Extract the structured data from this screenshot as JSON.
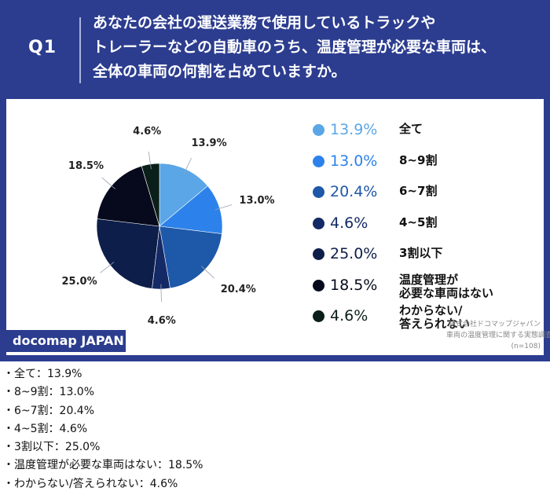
{
  "header": {
    "q_label": "Q1",
    "question_lines": [
      "あなたの会社の運送業務で使用しているトラックや",
      "トレーラーなどの自動車のうち、温度管理が必要な車両は、",
      "全体の車両の何割を占めていますか。"
    ]
  },
  "chart_data": {
    "type": "pie",
    "title": "",
    "categories": [
      "全て",
      "8~9割",
      "6~7割",
      "4~5割",
      "3割以下",
      "温度管理が必要な車両はない",
      "わからない/答えられない"
    ],
    "legend_labels": [
      "全て",
      "8~9割",
      "6~7割",
      "4~5割",
      "3割以下",
      "温度管理が\n必要な車両はない",
      "わからない/\n答えられない"
    ],
    "values": [
      13.9,
      13.0,
      20.4,
      4.6,
      25.0,
      18.5,
      4.6
    ],
    "value_labels": [
      "13.9%",
      "13.0%",
      "20.4%",
      "4.6%",
      "25.0%",
      "18.5%",
      "4.6%"
    ],
    "colors": [
      "#5aa6e6",
      "#2c82ea",
      "#1e58a8",
      "#142a66",
      "#0e1e4a",
      "#060a1c",
      "#0b1f1a"
    ],
    "legend_value_colors": [
      "#5aa6e6",
      "#2c82ea",
      "#1e58a8",
      "#142a66",
      "#0e1e4a",
      "#060a1c",
      "#0b1f1a"
    ],
    "legend_placement": "right",
    "start_angle_deg": 0,
    "direction": "clockwise"
  },
  "source": {
    "lines": [
      "株式会社ドコマップジャパン",
      "車両の温度管理に関する実態調査",
      "(n=108)"
    ]
  },
  "brand": {
    "label": "docomap JAPAN"
  },
  "summary_list": [
    {
      "text": "・全て：13.9%",
      "bold": true
    },
    {
      "text": "・8~9割：13.0%",
      "bold": true
    },
    {
      "text": "・6~7割：20.4%",
      "bold": false
    },
    {
      "text": "・4~5割：4.6%",
      "bold": false
    },
    {
      "text": "・3割以下：25.0%",
      "bold": false
    },
    {
      "text": "・温度管理が必要な車両はない：18.5%",
      "bold": false
    },
    {
      "text": "・わからない/答えられない：4.6%",
      "bold": false
    }
  ]
}
